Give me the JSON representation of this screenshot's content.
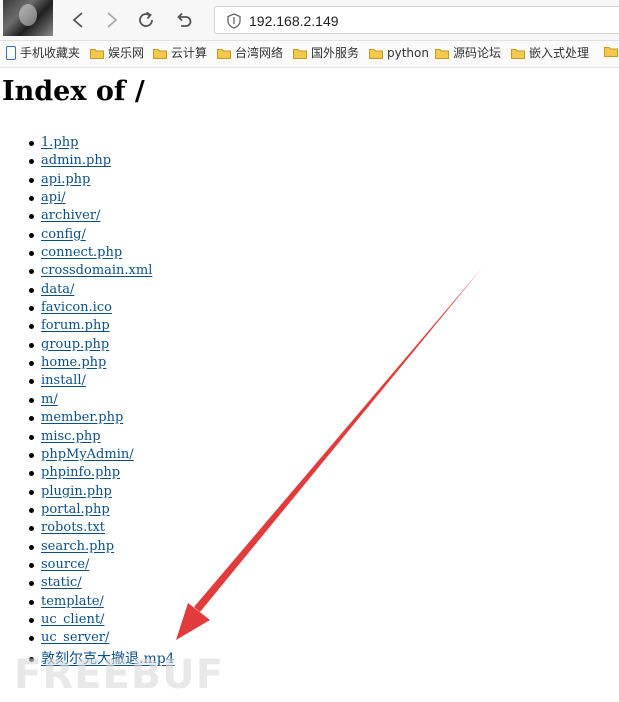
{
  "browser": {
    "url": "192.168.2.149",
    "bookmarks": [
      {
        "label": "手机收藏夹",
        "icon": "phone-icon"
      },
      {
        "label": "娱乐网",
        "icon": "folder-icon"
      },
      {
        "label": "云计算",
        "icon": "folder-icon"
      },
      {
        "label": "台湾网络",
        "icon": "folder-icon"
      },
      {
        "label": "国外服务",
        "icon": "folder-icon"
      },
      {
        "label": "python",
        "icon": "folder-icon"
      },
      {
        "label": "源码论坛",
        "icon": "folder-icon"
      },
      {
        "label": "嵌入式处理",
        "icon": "folder-icon"
      }
    ]
  },
  "page": {
    "title": "Index of /",
    "entries": [
      "1.php",
      "admin.php",
      "api.php",
      "api/",
      "archiver/",
      "config/",
      "connect.php",
      "crossdomain.xml",
      "data/",
      "favicon.ico",
      "forum.php",
      "group.php",
      "home.php",
      "install/",
      "m/",
      "member.php",
      "misc.php",
      "phpMyAdmin/",
      "phpinfo.php",
      "plugin.php",
      "portal.php",
      "robots.txt",
      "search.php",
      "source/",
      "static/",
      "template/",
      "uc_client/",
      "uc_server/",
      "敦刻尔克大撤退.mp4"
    ]
  },
  "watermark": "FREEBUF",
  "colors": {
    "link": "#0b4f8a",
    "arrow": "#e23b3b",
    "folder": "#f2c94c"
  }
}
